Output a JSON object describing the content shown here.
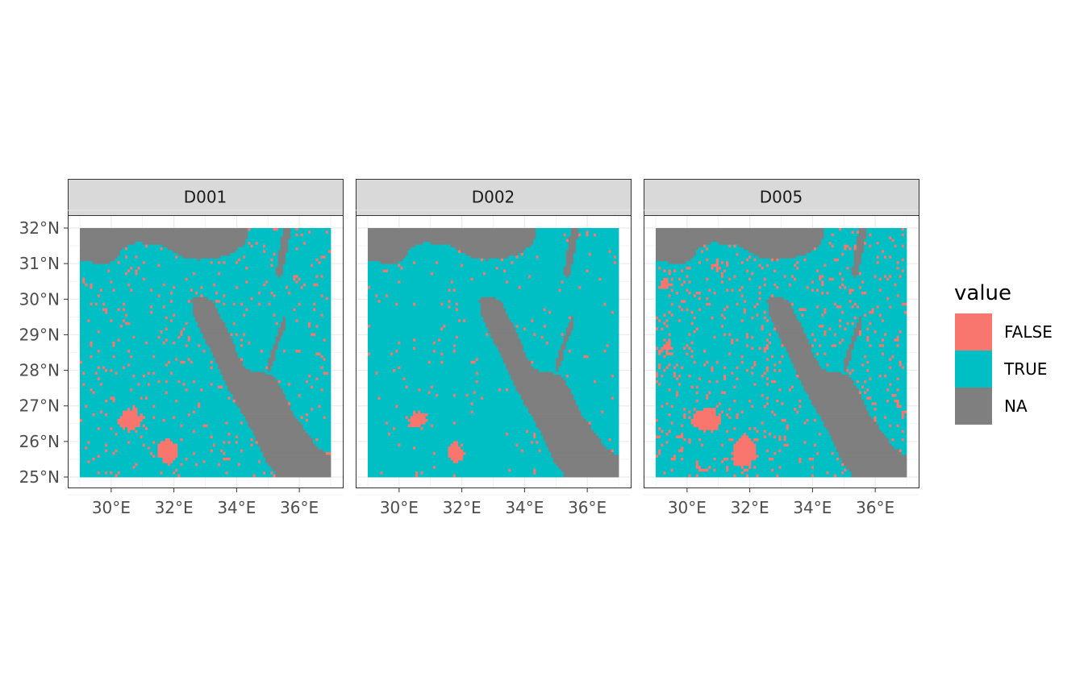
{
  "chart_data": {
    "type": "heatmap",
    "title": "",
    "xlabel": "",
    "ylabel": "",
    "xlim": [
      29,
      37
    ],
    "ylim": [
      25,
      32
    ],
    "x_ticks": [
      "30°E",
      "32°E",
      "34°E",
      "36°E"
    ],
    "y_ticks": [
      "25°N",
      "26°N",
      "27°N",
      "28°N",
      "29°N",
      "30°N",
      "31°N",
      "32°N"
    ],
    "grid": true,
    "legend": {
      "title": "value",
      "position": "right",
      "entries": [
        {
          "label": "FALSE",
          "color": "#F8766D"
        },
        {
          "label": "TRUE",
          "color": "#00BFC4"
        },
        {
          "label": "NA",
          "color": "#7F7F7F"
        }
      ]
    },
    "panels": [
      {
        "label": "D001",
        "false_fraction": 0.14
      },
      {
        "label": "D002",
        "false_fraction": 0.07
      },
      {
        "label": "D005",
        "false_fraction": 0.22
      }
    ]
  }
}
